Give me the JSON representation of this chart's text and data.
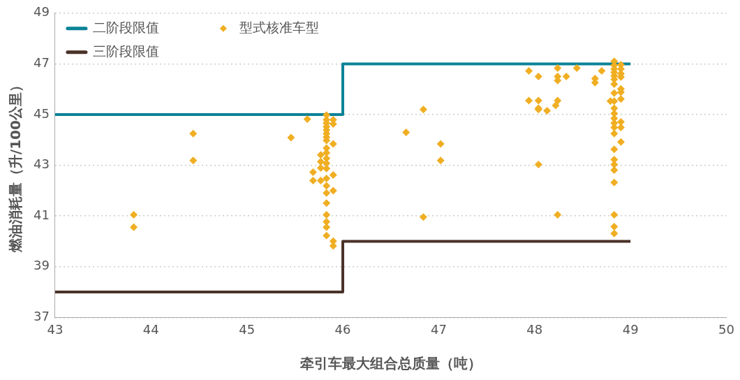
{
  "chart_data": {
    "type": "scatter",
    "xlabel": "牵引车最大组合总质量（吨）",
    "ylabel": "燃油消耗量（升/100公里）",
    "xlim": [
      43,
      50
    ],
    "xticks": [
      43,
      44,
      45,
      46,
      47,
      48,
      49,
      50
    ],
    "ylim": [
      37,
      49
    ],
    "yticks": [
      37,
      39,
      41,
      43,
      45,
      47,
      49
    ],
    "grid": "y",
    "legend": "top left",
    "series": [
      {
        "name": "二阶段限值",
        "type": "line",
        "marker": "none",
        "color": "#0a8296",
        "x": [
          43,
          46,
          46,
          49
        ],
        "values": [
          45,
          45,
          47,
          47
        ]
      },
      {
        "name": "三阶段限值",
        "type": "line",
        "marker": "none",
        "color": "#4a3128",
        "x": [
          43,
          46,
          46,
          49
        ],
        "values": [
          38,
          38,
          40,
          40
        ]
      },
      {
        "name": "型式核准车型",
        "marker": "diamond",
        "color": "#f0ae22",
        "x": [
          43.82,
          43.82,
          44.44,
          44.44,
          45.46,
          45.63,
          45.83,
          45.83,
          45.83,
          45.83,
          45.83,
          45.83,
          45.83,
          45.83,
          45.83,
          45.83,
          45.83,
          45.83,
          45.83,
          45.83,
          45.83,
          45.83,
          45.83,
          45.83,
          45.83,
          45.83,
          45.83,
          45.9,
          45.9,
          45.9,
          45.9,
          45.9,
          45.9,
          45.9,
          45.77,
          45.77,
          45.77,
          45.77,
          45.69,
          45.69,
          46.84,
          46.66,
          47.02,
          47.02,
          46.84,
          47.94,
          48.04,
          48.24,
          48.24,
          48.24,
          48.33,
          48.44,
          48.63,
          48.63,
          48.7,
          47.94,
          48.04,
          48.04,
          48.04,
          48.13,
          48.24,
          48.22,
          48.04,
          48.24,
          48.83,
          48.83,
          48.83,
          48.83,
          48.83,
          48.83,
          48.83,
          48.83,
          48.83,
          48.83,
          48.83,
          48.83,
          48.83,
          48.83,
          48.83,
          48.83,
          48.83,
          48.83,
          48.83,
          48.83,
          48.83,
          48.83,
          48.83,
          48.9,
          48.9,
          48.9,
          48.9,
          48.9,
          48.9,
          48.9,
          48.9,
          48.9,
          48.9,
          48.79
        ],
        "values": [
          41.05,
          40.56,
          44.25,
          43.19,
          44.09,
          44.82,
          44.98,
          44.79,
          44.66,
          44.52,
          44.39,
          44.25,
          44.11,
          43.98,
          43.68,
          43.49,
          43.27,
          43.08,
          42.87,
          42.48,
          42.19,
          41.91,
          41.51,
          41.05,
          40.77,
          40.56,
          40.23,
          44.79,
          44.63,
          43.84,
          42.62,
          42.0,
          40.01,
          39.82,
          43.41,
          43.14,
          42.89,
          42.4,
          42.73,
          42.4,
          45.2,
          44.3,
          43.84,
          43.19,
          40.96,
          46.72,
          46.5,
          46.83,
          46.5,
          46.34,
          46.5,
          46.83,
          46.42,
          46.26,
          46.72,
          45.55,
          45.55,
          45.25,
          45.2,
          45.15,
          45.55,
          45.36,
          43.03,
          41.05,
          47.1,
          46.94,
          46.8,
          46.67,
          46.53,
          46.39,
          46.2,
          45.85,
          45.53,
          45.25,
          45.04,
          44.85,
          44.66,
          44.49,
          44.25,
          43.63,
          43.22,
          43.03,
          42.81,
          42.32,
          41.05,
          40.58,
          40.31,
          46.96,
          46.8,
          46.61,
          46.48,
          46.01,
          45.88,
          45.61,
          44.71,
          44.49,
          43.92,
          45.53
        ]
      }
    ]
  }
}
